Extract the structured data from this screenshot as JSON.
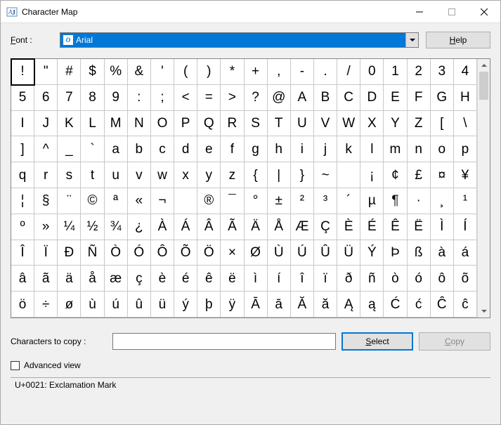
{
  "window": {
    "title": "Character Map"
  },
  "font": {
    "label_raw": "Font :",
    "selected": "Arial",
    "help_label": "Help"
  },
  "grid": {
    "rows": [
      [
        "!",
        "\"",
        "#",
        "$",
        "%",
        "&",
        "'",
        "(",
        ")",
        "*",
        "+",
        ",",
        "-",
        ".",
        "/",
        "0",
        "1",
        "2",
        "3",
        "4"
      ],
      [
        "5",
        "6",
        "7",
        "8",
        "9",
        ":",
        ";",
        "<",
        "=",
        ">",
        "?",
        "@",
        "A",
        "B",
        "C",
        "D",
        "E",
        "F",
        "G",
        "H"
      ],
      [
        "I",
        "J",
        "K",
        "L",
        "M",
        "N",
        "O",
        "P",
        "Q",
        "R",
        "S",
        "T",
        "U",
        "V",
        "W",
        "X",
        "Y",
        "Z",
        "[",
        "\\"
      ],
      [
        "]",
        "^",
        "_",
        "`",
        "a",
        "b",
        "c",
        "d",
        "e",
        "f",
        "g",
        "h",
        "i",
        "j",
        "k",
        "l",
        "m",
        "n",
        "o",
        "p"
      ],
      [
        "q",
        "r",
        "s",
        "t",
        "u",
        "v",
        "w",
        "x",
        "y",
        "z",
        "{",
        "|",
        "}",
        "~",
        " ",
        "¡",
        "¢",
        "£",
        "¤",
        "¥"
      ],
      [
        "¦",
        "§",
        "¨",
        "©",
        "ª",
        "«",
        "¬",
        "­",
        "®",
        "¯",
        "°",
        "±",
        "²",
        "³",
        "´",
        "µ",
        "¶",
        "·",
        "¸",
        "¹"
      ],
      [
        "º",
        "»",
        "¼",
        "½",
        "¾",
        "¿",
        "À",
        "Á",
        "Â",
        "Ã",
        "Ä",
        "Å",
        "Æ",
        "Ç",
        "È",
        "É",
        "Ê",
        "Ë",
        "Ì",
        "Í"
      ],
      [
        "Î",
        "Ï",
        "Ð",
        "Ñ",
        "Ò",
        "Ó",
        "Ô",
        "Õ",
        "Ö",
        "×",
        "Ø",
        "Ù",
        "Ú",
        "Û",
        "Ü",
        "Ý",
        "Þ",
        "ß",
        "à",
        "á"
      ],
      [
        "â",
        "ã",
        "ä",
        "å",
        "æ",
        "ç",
        "è",
        "é",
        "ê",
        "ë",
        "ì",
        "í",
        "î",
        "ï",
        "ð",
        "ñ",
        "ò",
        "ó",
        "ô",
        "õ"
      ],
      [
        "ö",
        "÷",
        "ø",
        "ù",
        "ú",
        "û",
        "ü",
        "ý",
        "þ",
        "ÿ",
        "Ā",
        "ā",
        "Ă",
        "ă",
        "Ą",
        "ą",
        "Ć",
        "ć",
        "Ĉ",
        "ĉ"
      ]
    ],
    "selected_index": 0
  },
  "copy": {
    "label": "Characters to copy :",
    "value": "",
    "select_label": "Select",
    "copy_label": "Copy"
  },
  "advanced": {
    "label": "Advanced view",
    "checked": false
  },
  "status": {
    "text": "U+0021: Exclamation Mark"
  },
  "colors": {
    "selection_bg": "#0078d7",
    "button_bg": "#e1e1e1",
    "border": "#adadad"
  }
}
